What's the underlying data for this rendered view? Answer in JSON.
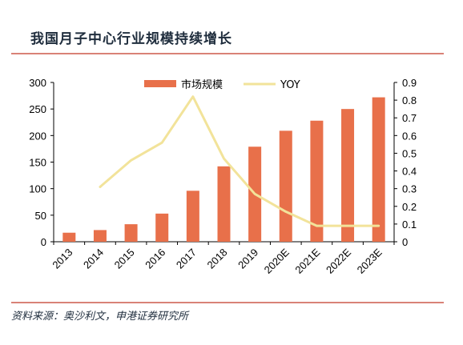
{
  "header": {
    "title": "我国月子中心行业规模持续增长"
  },
  "footer": {
    "source": "资料来源：奥沙利文，申港证券研究所"
  },
  "chart_data": {
    "type": "bar",
    "title": "我国月子中心行业规模持续增长",
    "categories": [
      "2013",
      "2014",
      "2015",
      "2016",
      "2017",
      "2018",
      "2019",
      "2020E",
      "2021E",
      "2022E",
      "2023E"
    ],
    "series": [
      {
        "name": "市场规模",
        "type": "bar",
        "axis": "left",
        "color": "#e8704a",
        "values": [
          17,
          22,
          33,
          53,
          96,
          142,
          179,
          209,
          228,
          250,
          272
        ]
      },
      {
        "name": "YOY",
        "type": "line",
        "axis": "right",
        "color": "#f2e39a",
        "values": [
          null,
          0.31,
          0.46,
          0.56,
          0.82,
          0.47,
          0.27,
          0.17,
          0.09,
          0.09,
          0.09
        ]
      }
    ],
    "y_left": {
      "min": 0,
      "max": 300,
      "ticks": [
        0,
        50,
        100,
        150,
        200,
        250,
        300
      ]
    },
    "y_right": {
      "min": 0,
      "max": 0.9,
      "ticks": [
        "0",
        "0.1",
        "0.2",
        "0.3",
        "0.4",
        "0.5",
        "0.6",
        "0.7",
        "0.8",
        "0.9"
      ]
    },
    "legend": "top-center",
    "grid": false
  }
}
